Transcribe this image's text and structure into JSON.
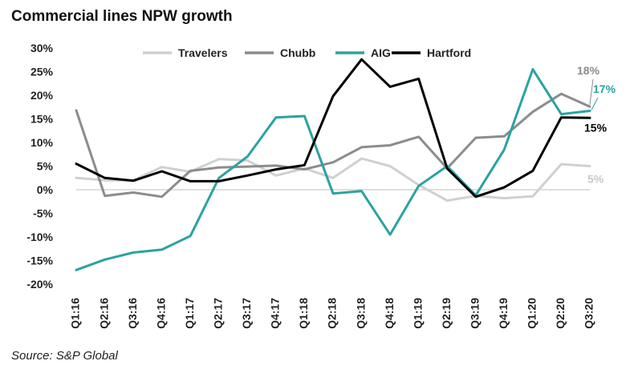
{
  "chart_data": {
    "type": "line",
    "title": "Commercial lines NPW growth",
    "source": "Source: S&P Global",
    "xlabel": "",
    "ylabel": "",
    "ylim": [
      -20,
      30
    ],
    "yticks": [
      -20,
      -15,
      -10,
      -5,
      0,
      5,
      10,
      15,
      20,
      25,
      30
    ],
    "ytick_labels": [
      "-20%",
      "-15%",
      "-10%",
      "-5%",
      "0%",
      "5%",
      "10%",
      "15%",
      "20%",
      "25%",
      "30%"
    ],
    "categories": [
      "Q1:16",
      "Q2:16",
      "Q3:16",
      "Q4:16",
      "Q1:17",
      "Q2:17",
      "Q3:17",
      "Q4:17",
      "Q1:18",
      "Q2:18",
      "Q3:18",
      "Q4:18",
      "Q1:19",
      "Q2:19",
      "Q3:19",
      "Q4:19",
      "Q1:20",
      "Q2:20",
      "Q3:20"
    ],
    "grid": false,
    "legend_position": "top",
    "series": [
      {
        "name": "Travelers",
        "color": "#d0d0d0",
        "end_label": "5%",
        "values": [
          2.5,
          2.0,
          2.0,
          4.8,
          3.8,
          6.5,
          6.2,
          3.0,
          4.5,
          2.5,
          6.6,
          5.0,
          1.0,
          -2.3,
          -1.3,
          -1.8,
          -1.4,
          5.4,
          5.0
        ]
      },
      {
        "name": "Chubb",
        "color": "#8c8c8c",
        "end_label": "18%",
        "values": [
          16.8,
          -1.3,
          -0.6,
          -1.5,
          4.0,
          4.7,
          4.9,
          5.1,
          4.3,
          5.8,
          9.0,
          9.4,
          11.2,
          4.5,
          11.0,
          11.3,
          16.5,
          20.3,
          17.6
        ]
      },
      {
        "name": "AIG",
        "color": "#2ba3a0",
        "end_label": "17%",
        "values": [
          -17.0,
          -14.8,
          -13.3,
          -12.7,
          -9.8,
          2.5,
          7.0,
          15.3,
          15.6,
          -0.8,
          -0.3,
          -9.5,
          0.8,
          5.0,
          -1.2,
          8.5,
          25.5,
          16.0,
          16.7
        ]
      },
      {
        "name": "Hartford",
        "color": "#000000",
        "end_label": "15%",
        "values": [
          5.5,
          2.5,
          1.9,
          3.9,
          1.8,
          1.8,
          3.0,
          4.3,
          5.2,
          19.8,
          27.6,
          21.8,
          23.5,
          4.5,
          -1.5,
          0.5,
          4.0,
          15.3,
          15.2
        ]
      }
    ]
  }
}
